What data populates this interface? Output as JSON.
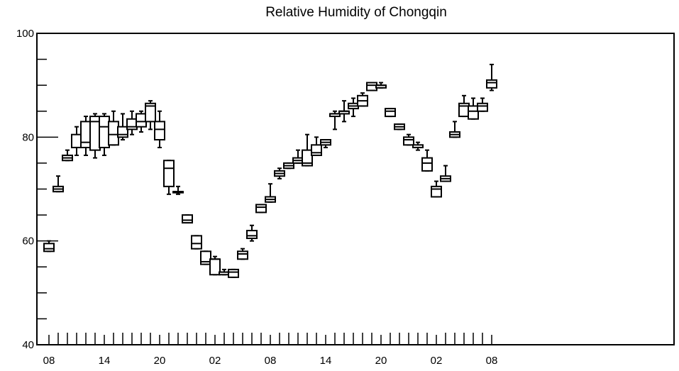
{
  "chart_data": {
    "type": "box",
    "title": "Relative Humidity of Chongqin",
    "xlabel": "",
    "ylabel": "",
    "ylim": [
      40,
      100
    ],
    "yticks": [
      40,
      60,
      80,
      100
    ],
    "ytick_labels": [
      "40",
      "60",
      "80",
      "100"
    ],
    "xtick_labels": [
      "08",
      "14",
      "20",
      "02",
      "08",
      "14",
      "20",
      "02",
      "08"
    ],
    "xtick_positions": [
      0,
      6,
      12,
      18,
      24,
      30,
      36,
      42,
      48
    ],
    "grid": false,
    "series": [
      {
        "boxes": [
          {
            "x": 0,
            "min": 58.0,
            "q1": 58.0,
            "median": 58.5,
            "q3": 59.5,
            "max": 60.0
          },
          {
            "x": 1,
            "min": 69.5,
            "q1": 69.5,
            "median": 70.0,
            "q3": 70.5,
            "max": 72.5
          },
          {
            "x": 2,
            "min": 75.5,
            "q1": 75.5,
            "median": 76.0,
            "q3": 76.5,
            "max": 77.5
          },
          {
            "x": 3,
            "min": 76.5,
            "q1": 78.0,
            "median": 78.0,
            "q3": 80.5,
            "max": 82.0
          },
          {
            "x": 4,
            "min": 76.5,
            "q1": 78.0,
            "median": 79.0,
            "q3": 83.0,
            "max": 84.0
          },
          {
            "x": 5,
            "min": 76.0,
            "q1": 77.5,
            "median": 83.0,
            "q3": 84.0,
            "max": 84.5
          },
          {
            "x": 6,
            "min": 76.5,
            "q1": 78.0,
            "median": 82.0,
            "q3": 84.0,
            "max": 84.5
          },
          {
            "x": 7,
            "min": 78.5,
            "q1": 78.5,
            "median": 80.5,
            "q3": 83.0,
            "max": 85.0
          },
          {
            "x": 8,
            "min": 79.5,
            "q1": 80.0,
            "median": 80.5,
            "q3": 82.0,
            "max": 84.5
          },
          {
            "x": 9,
            "min": 80.5,
            "q1": 81.5,
            "median": 82.0,
            "q3": 83.5,
            "max": 85.0
          },
          {
            "x": 10,
            "min": 81.0,
            "q1": 82.0,
            "median": 83.0,
            "q3": 84.5,
            "max": 85.0
          },
          {
            "x": 11,
            "min": 81.5,
            "q1": 83.0,
            "median": 86.0,
            "q3": 86.5,
            "max": 87.0
          },
          {
            "x": 12,
            "min": 78.0,
            "q1": 79.5,
            "median": 81.5,
            "q3": 83.0,
            "max": 85.0
          },
          {
            "x": 13,
            "min": 69.0,
            "q1": 70.5,
            "median": 74.0,
            "q3": 75.5,
            "max": 75.5
          },
          {
            "x": 14,
            "min": 69.0,
            "q1": 69.5,
            "median": 69.5,
            "q3": 69.5,
            "max": 70.5
          },
          {
            "x": 15,
            "min": 63.5,
            "q1": 63.5,
            "median": 64.0,
            "q3": 65.0,
            "max": 65.0
          },
          {
            "x": 16,
            "min": 58.5,
            "q1": 58.5,
            "median": 59.5,
            "q3": 61.0,
            "max": 61.0
          },
          {
            "x": 17,
            "min": 55.5,
            "q1": 55.5,
            "median": 56.0,
            "q3": 58.0,
            "max": 58.0
          },
          {
            "x": 18,
            "min": 53.5,
            "q1": 53.5,
            "median": 56.5,
            "q3": 56.5,
            "max": 57.0
          },
          {
            "x": 19,
            "min": 53.5,
            "q1": 53.5,
            "median": 54.0,
            "q3": 54.0,
            "max": 54.5
          },
          {
            "x": 20,
            "min": 53.0,
            "q1": 53.0,
            "median": 54.0,
            "q3": 54.5,
            "max": 54.5
          },
          {
            "x": 21,
            "min": 56.5,
            "q1": 56.5,
            "median": 57.5,
            "q3": 58.0,
            "max": 58.5
          },
          {
            "x": 22,
            "min": 60.0,
            "q1": 60.5,
            "median": 61.0,
            "q3": 62.0,
            "max": 63.0
          },
          {
            "x": 23,
            "min": 65.5,
            "q1": 65.5,
            "median": 66.5,
            "q3": 67.0,
            "max": 67.0
          },
          {
            "x": 24,
            "min": 67.5,
            "q1": 67.5,
            "median": 68.0,
            "q3": 68.5,
            "max": 71.0
          },
          {
            "x": 25,
            "min": 72.0,
            "q1": 72.5,
            "median": 73.0,
            "q3": 73.5,
            "max": 74.0
          },
          {
            "x": 26,
            "min": 74.0,
            "q1": 74.0,
            "median": 74.5,
            "q3": 75.0,
            "max": 75.0
          },
          {
            "x": 27,
            "min": 75.0,
            "q1": 75.0,
            "median": 75.5,
            "q3": 76.0,
            "max": 77.5
          },
          {
            "x": 28,
            "min": 74.5,
            "q1": 74.5,
            "median": 75.0,
            "q3": 77.5,
            "max": 80.5
          },
          {
            "x": 29,
            "min": 76.5,
            "q1": 76.5,
            "median": 77.0,
            "q3": 78.5,
            "max": 80.0
          },
          {
            "x": 30,
            "min": 78.0,
            "q1": 78.5,
            "median": 79.0,
            "q3": 79.5,
            "max": 79.5
          },
          {
            "x": 31,
            "min": 81.5,
            "q1": 84.0,
            "median": 84.5,
            "q3": 84.5,
            "max": 85.0
          },
          {
            "x": 32,
            "min": 83.0,
            "q1": 84.5,
            "median": 85.0,
            "q3": 85.0,
            "max": 87.0
          },
          {
            "x": 33,
            "min": 84.0,
            "q1": 85.5,
            "median": 86.0,
            "q3": 86.5,
            "max": 87.5
          },
          {
            "x": 34,
            "min": 86.0,
            "q1": 86.0,
            "median": 87.0,
            "q3": 88.0,
            "max": 88.5
          },
          {
            "x": 35,
            "min": 89.0,
            "q1": 89.0,
            "median": 90.0,
            "q3": 90.5,
            "max": 90.5
          },
          {
            "x": 36,
            "min": 89.5,
            "q1": 89.5,
            "median": 90.0,
            "q3": 90.0,
            "max": 90.5
          },
          {
            "x": 37,
            "min": 84.0,
            "q1": 84.0,
            "median": 85.0,
            "q3": 85.5,
            "max": 85.5
          },
          {
            "x": 38,
            "min": 81.5,
            "q1": 81.5,
            "median": 82.0,
            "q3": 82.5,
            "max": 82.5
          },
          {
            "x": 39,
            "min": 78.5,
            "q1": 78.5,
            "median": 79.5,
            "q3": 80.0,
            "max": 80.5
          },
          {
            "x": 40,
            "min": 77.5,
            "q1": 78.0,
            "median": 78.0,
            "q3": 78.5,
            "max": 79.0
          },
          {
            "x": 41,
            "min": 73.5,
            "q1": 73.5,
            "median": 75.0,
            "q3": 76.0,
            "max": 77.5
          },
          {
            "x": 42,
            "min": 68.5,
            "q1": 68.5,
            "median": 70.0,
            "q3": 70.5,
            "max": 71.5
          },
          {
            "x": 43,
            "min": 71.5,
            "q1": 71.5,
            "median": 72.0,
            "q3": 72.5,
            "max": 74.5
          },
          {
            "x": 44,
            "min": 80.0,
            "q1": 80.0,
            "median": 80.5,
            "q3": 81.0,
            "max": 83.0
          },
          {
            "x": 45,
            "min": 84.0,
            "q1": 84.0,
            "median": 86.0,
            "q3": 86.5,
            "max": 88.0
          },
          {
            "x": 46,
            "min": 83.5,
            "q1": 83.5,
            "median": 85.0,
            "q3": 86.0,
            "max": 87.5
          },
          {
            "x": 47,
            "min": 85.0,
            "q1": 85.0,
            "median": 86.0,
            "q3": 86.5,
            "max": 87.5
          },
          {
            "x": 48,
            "min": 89.0,
            "q1": 89.5,
            "median": 90.5,
            "q3": 91.0,
            "max": 94.0
          }
        ]
      }
    ]
  }
}
